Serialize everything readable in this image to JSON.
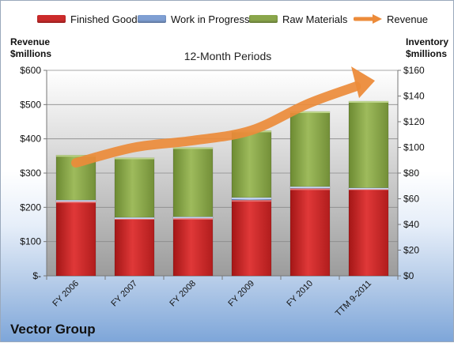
{
  "legend": [
    {
      "label": "Finished Goods",
      "color": "#cc2b2b"
    },
    {
      "label": "Work in Progress",
      "color": "#7f9fd3"
    },
    {
      "label": "Raw Materials",
      "color": "#8aa64b"
    },
    {
      "label": "Revenue",
      "color": "#ec8b3a"
    }
  ],
  "left_axis_title": [
    "Revenue",
    "$millions"
  ],
  "right_axis_title": [
    "Inventory",
    "$millions"
  ],
  "subtitle": "12-Month Periods",
  "company": "Vector Group",
  "chart_data": {
    "type": "bar",
    "stacked": true,
    "categories": [
      "FY 2006",
      "FY 2007",
      "FY 2008",
      "FY 2009",
      "FY 2010",
      "TTM 9-2011"
    ],
    "series": [
      {
        "name": "Finished Goods",
        "axis": "right",
        "color": "#cc2b2b",
        "values": [
          58,
          45,
          45,
          59,
          68,
          68
        ]
      },
      {
        "name": "Work in Progress",
        "axis": "right",
        "color": "#7f9fd3",
        "values": [
          1,
          0.5,
          1,
          2,
          1.5,
          0.5
        ]
      },
      {
        "name": "Raw Materials",
        "axis": "right",
        "color": "#8aa64b",
        "values": [
          35,
          46.5,
          54,
          52,
          58.5,
          67.5
        ]
      },
      {
        "name": "Revenue",
        "axis": "left",
        "type": "line",
        "color": "#ec8b3a",
        "values": [
          330,
          375,
          395,
          425,
          505,
          565
        ]
      }
    ],
    "left_axis": {
      "ylim": [
        0,
        600
      ],
      "ticks": [
        0,
        100,
        200,
        300,
        400,
        500,
        600
      ],
      "tick_labels": [
        "$-",
        "$100",
        "$200",
        "$300",
        "$400",
        "$500",
        "$600"
      ]
    },
    "right_axis": {
      "ylim": [
        0,
        160
      ],
      "ticks": [
        0,
        20,
        40,
        60,
        80,
        100,
        120,
        140,
        160
      ],
      "tick_labels": [
        "$0",
        "$20",
        "$40",
        "$60",
        "$80",
        "$100",
        "$120",
        "$140",
        "$160"
      ]
    },
    "grid": true,
    "legend_position": "top"
  }
}
